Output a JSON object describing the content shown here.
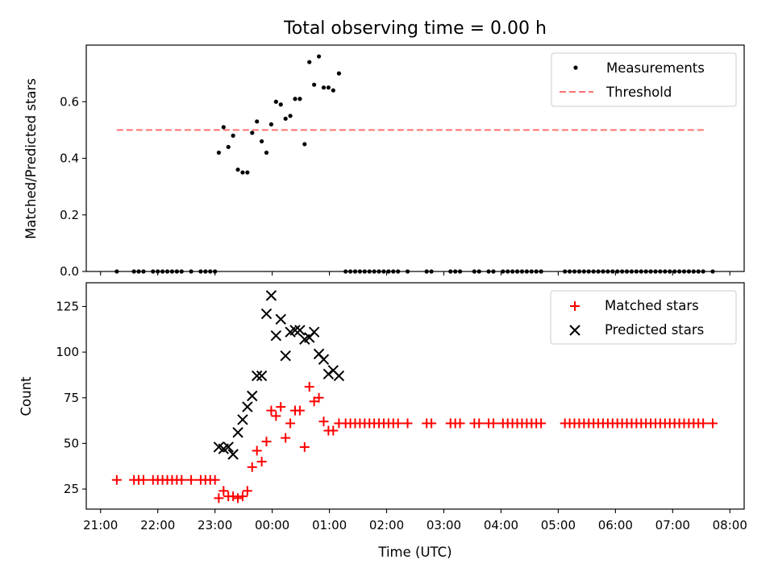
{
  "chart_data": [
    {
      "type": "scatter",
      "title": "Total observing time = 0.00 h",
      "xlabel": "",
      "ylabel": "Matched/Predicted stars",
      "xlim": [
        "20:45",
        "08:15"
      ],
      "ylim": [
        0,
        0.8
      ],
      "yticks": [
        "0.0",
        "0.2",
        "0.4",
        "0.6"
      ],
      "legend_loc": "upper right",
      "series": [
        {
          "name": "Measurements",
          "style": "point",
          "color": "#000000",
          "points": [
            [
              "21:17",
              0
            ],
            [
              "21:35",
              0
            ],
            [
              "21:40",
              0
            ],
            [
              "21:45",
              0
            ],
            [
              "21:55",
              0
            ],
            [
              "22:00",
              0
            ],
            [
              "22:05",
              0
            ],
            [
              "22:10",
              0
            ],
            [
              "22:15",
              0
            ],
            [
              "22:20",
              0
            ],
            [
              "22:25",
              0
            ],
            [
              "22:35",
              0
            ],
            [
              "22:45",
              0
            ],
            [
              "22:50",
              0
            ],
            [
              "22:55",
              0
            ],
            [
              "23:00",
              0
            ],
            [
              "23:04",
              0.42
            ],
            [
              "23:09",
              0.51
            ],
            [
              "23:14",
              0.44
            ],
            [
              "23:19",
              0.48
            ],
            [
              "23:24",
              0.36
            ],
            [
              "23:29",
              0.35
            ],
            [
              "23:34",
              0.35
            ],
            [
              "23:39",
              0.49
            ],
            [
              "23:44",
              0.53
            ],
            [
              "23:49",
              0.46
            ],
            [
              "23:54",
              0.42
            ],
            [
              "23:59",
              0.52
            ],
            [
              "00:04",
              0.6
            ],
            [
              "00:09",
              0.59
            ],
            [
              "00:14",
              0.54
            ],
            [
              "00:19",
              0.55
            ],
            [
              "00:24",
              0.61
            ],
            [
              "00:29",
              0.61
            ],
            [
              "00:34",
              0.45
            ],
            [
              "00:39",
              0.74
            ],
            [
              "00:44",
              0.66
            ],
            [
              "00:49",
              0.76
            ],
            [
              "00:54",
              0.65
            ],
            [
              "00:59",
              0.65
            ],
            [
              "01:04",
              0.64
            ],
            [
              "01:10",
              0.7
            ],
            [
              "01:17",
              0
            ],
            [
              "01:22",
              0
            ],
            [
              "01:27",
              0
            ],
            [
              "01:32",
              0
            ],
            [
              "01:37",
              0
            ],
            [
              "01:42",
              0
            ],
            [
              "01:47",
              0
            ],
            [
              "01:52",
              0
            ],
            [
              "01:57",
              0
            ],
            [
              "02:02",
              0
            ],
            [
              "02:07",
              0
            ],
            [
              "02:12",
              0
            ],
            [
              "02:22",
              0
            ],
            [
              "02:42",
              0
            ],
            [
              "02:47",
              0
            ],
            [
              "03:07",
              0
            ],
            [
              "03:12",
              0
            ],
            [
              "03:17",
              0
            ],
            [
              "03:32",
              0
            ],
            [
              "03:37",
              0
            ],
            [
              "03:47",
              0
            ],
            [
              "03:52",
              0
            ],
            [
              "04:02",
              0
            ],
            [
              "04:07",
              0
            ],
            [
              "04:12",
              0
            ],
            [
              "04:17",
              0
            ],
            [
              "04:22",
              0
            ],
            [
              "04:27",
              0
            ],
            [
              "04:32",
              0
            ],
            [
              "04:37",
              0
            ],
            [
              "04:42",
              0
            ],
            [
              "05:07",
              0
            ],
            [
              "05:12",
              0
            ],
            [
              "05:17",
              0
            ],
            [
              "05:22",
              0
            ],
            [
              "05:27",
              0
            ],
            [
              "05:32",
              0
            ],
            [
              "05:37",
              0
            ],
            [
              "05:42",
              0
            ],
            [
              "05:47",
              0
            ],
            [
              "05:52",
              0
            ],
            [
              "05:57",
              0
            ],
            [
              "06:02",
              0
            ],
            [
              "06:07",
              0
            ],
            [
              "06:12",
              0
            ],
            [
              "06:17",
              0
            ],
            [
              "06:22",
              0
            ],
            [
              "06:27",
              0
            ],
            [
              "06:32",
              0
            ],
            [
              "06:37",
              0
            ],
            [
              "06:42",
              0
            ],
            [
              "06:47",
              0
            ],
            [
              "06:52",
              0
            ],
            [
              "06:57",
              0
            ],
            [
              "07:02",
              0
            ],
            [
              "07:07",
              0
            ],
            [
              "07:12",
              0
            ],
            [
              "07:17",
              0
            ],
            [
              "07:22",
              0
            ],
            [
              "07:27",
              0
            ],
            [
              "07:32",
              0
            ],
            [
              "07:42",
              0
            ]
          ]
        },
        {
          "name": "Threshold",
          "style": "dashed-line",
          "color": "#ff7070",
          "points": [
            [
              "21:17",
              0.5
            ],
            [
              "07:35",
              0.5
            ]
          ]
        }
      ]
    },
    {
      "type": "scatter",
      "title": "",
      "xlabel": "Time (UTC)",
      "ylabel": "Count",
      "xlim": [
        "20:45",
        "08:15"
      ],
      "ylim": [
        14,
        138
      ],
      "yticks": [
        "25",
        "50",
        "75",
        "100",
        "125"
      ],
      "xticks": [
        "21:00",
        "22:00",
        "23:00",
        "00:00",
        "01:00",
        "02:00",
        "03:00",
        "04:00",
        "05:00",
        "06:00",
        "07:00",
        "08:00"
      ],
      "legend_loc": "upper right",
      "series": [
        {
          "name": "Matched stars",
          "style": "plus",
          "color": "#ff0000",
          "points": [
            [
              "21:17",
              30
            ],
            [
              "21:35",
              30
            ],
            [
              "21:40",
              30
            ],
            [
              "21:45",
              30
            ],
            [
              "21:55",
              30
            ],
            [
              "22:00",
              30
            ],
            [
              "22:05",
              30
            ],
            [
              "22:10",
              30
            ],
            [
              "22:15",
              30
            ],
            [
              "22:20",
              30
            ],
            [
              "22:25",
              30
            ],
            [
              "22:35",
              30
            ],
            [
              "22:45",
              30
            ],
            [
              "22:50",
              30
            ],
            [
              "22:55",
              30
            ],
            [
              "23:00",
              30
            ],
            [
              "23:04",
              20
            ],
            [
              "23:09",
              24
            ],
            [
              "23:14",
              21
            ],
            [
              "23:19",
              21
            ],
            [
              "23:24",
              20
            ],
            [
              "23:29",
              21
            ],
            [
              "23:34",
              24
            ],
            [
              "23:39",
              37
            ],
            [
              "23:44",
              46
            ],
            [
              "23:49",
              40
            ],
            [
              "23:54",
              51
            ],
            [
              "23:59",
              68
            ],
            [
              "00:04",
              65
            ],
            [
              "00:09",
              70
            ],
            [
              "00:14",
              53
            ],
            [
              "00:19",
              61
            ],
            [
              "00:24",
              68
            ],
            [
              "00:29",
              68
            ],
            [
              "00:34",
              48
            ],
            [
              "00:39",
              81
            ],
            [
              "00:44",
              73
            ],
            [
              "00:49",
              75
            ],
            [
              "00:54",
              62
            ],
            [
              "00:59",
              57
            ],
            [
              "01:04",
              57
            ],
            [
              "01:10",
              61
            ],
            [
              "01:17",
              61
            ],
            [
              "01:22",
              61
            ],
            [
              "01:27",
              61
            ],
            [
              "01:32",
              61
            ],
            [
              "01:37",
              61
            ],
            [
              "01:42",
              61
            ],
            [
              "01:47",
              61
            ],
            [
              "01:52",
              61
            ],
            [
              "01:57",
              61
            ],
            [
              "02:02",
              61
            ],
            [
              "02:07",
              61
            ],
            [
              "02:12",
              61
            ],
            [
              "02:22",
              61
            ],
            [
              "02:42",
              61
            ],
            [
              "02:47",
              61
            ],
            [
              "03:07",
              61
            ],
            [
              "03:12",
              61
            ],
            [
              "03:17",
              61
            ],
            [
              "03:32",
              61
            ],
            [
              "03:37",
              61
            ],
            [
              "03:47",
              61
            ],
            [
              "03:52",
              61
            ],
            [
              "04:02",
              61
            ],
            [
              "04:07",
              61
            ],
            [
              "04:12",
              61
            ],
            [
              "04:17",
              61
            ],
            [
              "04:22",
              61
            ],
            [
              "04:27",
              61
            ],
            [
              "04:32",
              61
            ],
            [
              "04:37",
              61
            ],
            [
              "04:42",
              61
            ],
            [
              "05:07",
              61
            ],
            [
              "05:12",
              61
            ],
            [
              "05:17",
              61
            ],
            [
              "05:22",
              61
            ],
            [
              "05:27",
              61
            ],
            [
              "05:32",
              61
            ],
            [
              "05:37",
              61
            ],
            [
              "05:42",
              61
            ],
            [
              "05:47",
              61
            ],
            [
              "05:52",
              61
            ],
            [
              "05:57",
              61
            ],
            [
              "06:02",
              61
            ],
            [
              "06:07",
              61
            ],
            [
              "06:12",
              61
            ],
            [
              "06:17",
              61
            ],
            [
              "06:22",
              61
            ],
            [
              "06:27",
              61
            ],
            [
              "06:32",
              61
            ],
            [
              "06:37",
              61
            ],
            [
              "06:42",
              61
            ],
            [
              "06:47",
              61
            ],
            [
              "06:52",
              61
            ],
            [
              "06:57",
              61
            ],
            [
              "07:02",
              61
            ],
            [
              "07:07",
              61
            ],
            [
              "07:12",
              61
            ],
            [
              "07:17",
              61
            ],
            [
              "07:22",
              61
            ],
            [
              "07:27",
              61
            ],
            [
              "07:32",
              61
            ],
            [
              "07:42",
              61
            ]
          ]
        },
        {
          "name": "Predicted stars",
          "style": "x",
          "color": "#000000",
          "points": [
            [
              "23:04",
              48
            ],
            [
              "23:09",
              47
            ],
            [
              "23:14",
              48
            ],
            [
              "23:19",
              44
            ],
            [
              "23:24",
              56
            ],
            [
              "23:29",
              63
            ],
            [
              "23:34",
              70
            ],
            [
              "23:39",
              76
            ],
            [
              "23:44",
              87
            ],
            [
              "23:49",
              87
            ],
            [
              "23:54",
              121
            ],
            [
              "23:59",
              131
            ],
            [
              "00:04",
              109
            ],
            [
              "00:09",
              118
            ],
            [
              "00:14",
              98
            ],
            [
              "00:19",
              111
            ],
            [
              "00:24",
              112
            ],
            [
              "00:29",
              112
            ],
            [
              "00:34",
              107
            ],
            [
              "00:39",
              108
            ],
            [
              "00:44",
              111
            ],
            [
              "00:49",
              99
            ],
            [
              "00:54",
              96
            ],
            [
              "00:59",
              88
            ],
            [
              "01:04",
              90
            ],
            [
              "01:10",
              87
            ]
          ]
        }
      ]
    }
  ]
}
